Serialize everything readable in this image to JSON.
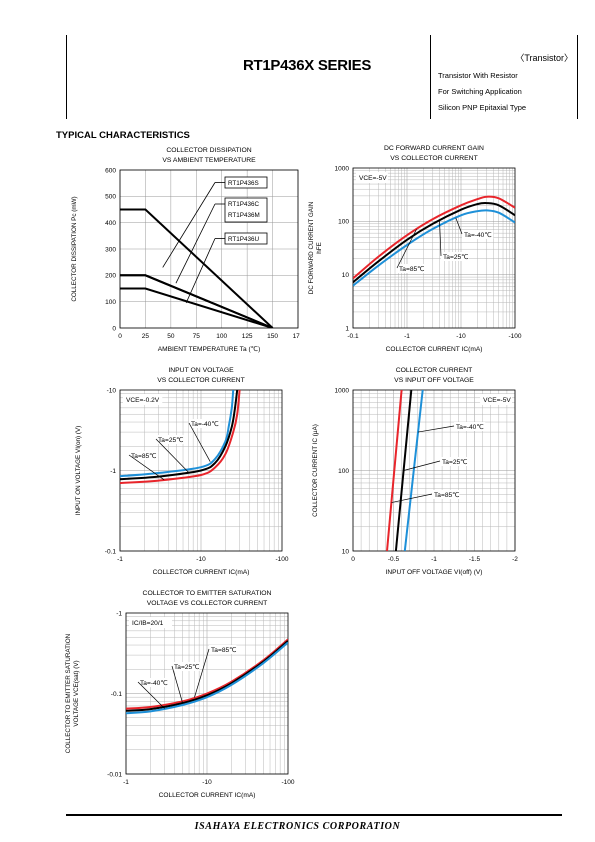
{
  "header": {
    "series_title": "RT1P436X SERIES",
    "category": "〈Transistor〉",
    "desc1": "Transistor With Resistor",
    "desc2": "For Switching Application",
    "desc3": "Silicon PNP Epitaxial Type"
  },
  "section_title": "TYPICAL CHARACTERISTICS",
  "footer": "ISAHAYA ELECTRONICS CORPORATION",
  "colors": {
    "black": "#000000",
    "red": "#e8252b",
    "blue": "#1e90d8",
    "grid": "#b8b8b8"
  },
  "chart_data": [
    {
      "id": "pc-ta",
      "type": "line",
      "title": "COLLECTOR DISSIPATION",
      "subtitle": "VS AMBIENT TEMPERATURE",
      "xlabel": "AMBIENT TEMPERATURE Ta (℃)",
      "ylabel": "COLLECTOR DISSIPATION Pc (mW)",
      "xlim": [
        0,
        175
      ],
      "ylim": [
        0,
        600
      ],
      "xticks": [
        "0",
        "25",
        "50",
        "75",
        "100",
        "125",
        "150",
        "175"
      ],
      "yticks": [
        "0",
        "100",
        "200",
        "300",
        "400",
        "500",
        "600"
      ],
      "series": [
        {
          "name": "RT1P436S",
          "x": [
            0,
            25,
            150
          ],
          "y": [
            450,
            450,
            0
          ]
        },
        {
          "name": "RT1P436C",
          "x": [
            0,
            25,
            150
          ],
          "y": [
            200,
            200,
            0
          ]
        },
        {
          "name": "RT1P436M",
          "x": [
            0,
            25,
            150
          ],
          "y": [
            200,
            200,
            0
          ]
        },
        {
          "name": "RT1P436U",
          "x": [
            0,
            25,
            150
          ],
          "y": [
            150,
            150,
            0
          ]
        }
      ],
      "labels": [
        "RT1P436S",
        "RT1P436C",
        "RT1P436M",
        "RT1P436U"
      ]
    },
    {
      "id": "hfe-ic",
      "type": "line",
      "title": "DC FORWARD CURRENT GAIN",
      "subtitle": "VS COLLECTOR CURRENT",
      "xlabel": "COLLECTOR CURRENT IC(mA)",
      "ylabel": "DC FORWARD CURRENT GAIN hFE",
      "xscale": "log",
      "yscale": "log",
      "xlim": [
        -0.1,
        -100
      ],
      "ylim": [
        1,
        1000
      ],
      "xticks": [
        "-0.1",
        "-1",
        "-10",
        "-100"
      ],
      "yticks": [
        "1",
        "10",
        "100",
        "1000"
      ],
      "condition": "VCE=-5V",
      "series": [
        {
          "name": "Ta=85℃",
          "x": [
            -0.1,
            -0.3,
            -1,
            -3,
            -10,
            -20,
            -30,
            -50,
            -100
          ],
          "y": [
            8.5,
            22,
            55,
            110,
            200,
            260,
            290,
            270,
            180
          ]
        },
        {
          "name": "Ta=25℃",
          "x": [
            -0.1,
            -0.3,
            -1,
            -3,
            -10,
            -20,
            -30,
            -50,
            -100
          ],
          "y": [
            7.2,
            18,
            45,
            90,
            165,
            210,
            220,
            200,
            130
          ]
        },
        {
          "name": "Ta=-40℃",
          "x": [
            -0.1,
            -0.3,
            -1,
            -3,
            -10,
            -20,
            -30,
            -50,
            -100
          ],
          "y": [
            6.2,
            15,
            36,
            72,
            130,
            155,
            160,
            145,
            95
          ]
        }
      ]
    },
    {
      "id": "vin-ic",
      "type": "line",
      "title": "INPUT ON VOLTAGE",
      "subtitle": "VS COLLECTOR CURRENT",
      "xlabel": "COLLECTOR CURRENT IC(mA)",
      "ylabel": "INPUT ON VOLTAGE VI(on) (V)",
      "xscale": "log",
      "yscale": "log",
      "xlim": [
        -1,
        -100
      ],
      "ylim": [
        -0.1,
        -10
      ],
      "xticks": [
        "-1",
        "-10",
        "-100"
      ],
      "yticks": [
        "-0.1",
        "-1",
        "-10"
      ],
      "condition": "VCE=-0.2V",
      "series": [
        {
          "name": "Ta=-40℃",
          "x": [
            -1,
            -3,
            -10,
            -15,
            -20,
            -22,
            -24,
            -25
          ],
          "y": [
            -0.85,
            -0.93,
            -1.1,
            -1.4,
            -2.3,
            -3.5,
            -6,
            -10
          ]
        },
        {
          "name": "Ta=25℃",
          "x": [
            -1,
            -3,
            -10,
            -15,
            -20,
            -24,
            -26,
            -28
          ],
          "y": [
            -0.78,
            -0.84,
            -1.0,
            -1.25,
            -2.0,
            -3.5,
            -5.5,
            -10
          ]
        },
        {
          "name": "Ta=85℃",
          "x": [
            -1,
            -3,
            -10,
            -15,
            -20,
            -25,
            -28,
            -30
          ],
          "y": [
            -0.7,
            -0.75,
            -0.88,
            -1.1,
            -1.6,
            -3,
            -5,
            -10
          ]
        }
      ]
    },
    {
      "id": "ic-vioff",
      "type": "line",
      "title": "COLLECTOR CURRENT",
      "subtitle": "VS INPUT OFF VOLTAGE",
      "xlabel": "INPUT OFF VOLTAGE VI(off) (V)",
      "ylabel": "COLLECTOR CURRENT IC (μA)",
      "yscale": "log",
      "xlim": [
        0,
        -2
      ],
      "ylim": [
        10,
        1000
      ],
      "xticks": [
        "0",
        "-0.5",
        "-1",
        "-1.5",
        "-2"
      ],
      "yticks": [
        "10",
        "100",
        "1000"
      ],
      "condition": "VCE=-5V",
      "series": [
        {
          "name": "Ta=85℃",
          "x": [
            -0.42,
            -0.6
          ],
          "y": [
            10,
            1000
          ]
        },
        {
          "name": "Ta=25℃",
          "x": [
            -0.53,
            -0.72
          ],
          "y": [
            10,
            1000
          ]
        },
        {
          "name": "Ta=-40℃",
          "x": [
            -0.64,
            -0.86
          ],
          "y": [
            10,
            1000
          ]
        }
      ]
    },
    {
      "id": "vcesat-ic",
      "type": "line",
      "title": "COLLECTOR TO EMITTER SATURATION",
      "subtitle": "VOLTAGE VS COLLECTOR CURRENT",
      "xlabel": "COLLECTOR CURRENT IC(mA)",
      "ylabel": "COLLECTOR TO EMITTER SATURATION VOLTAGE VCE(sat) (V)",
      "xscale": "log",
      "yscale": "log",
      "xlim": [
        -1,
        -100
      ],
      "ylim": [
        -0.01,
        -1
      ],
      "xticks": [
        "-1",
        "-10",
        "-100"
      ],
      "yticks": [
        "-0.01",
        "-0.1",
        "-1"
      ],
      "condition": "IC/IB=20/1",
      "series": [
        {
          "name": "Ta=85℃",
          "x": [
            -1,
            -2,
            -5,
            -10,
            -20,
            -50,
            -100
          ],
          "y": [
            -0.065,
            -0.068,
            -0.08,
            -0.1,
            -0.14,
            -0.26,
            -0.47
          ]
        },
        {
          "name": "Ta=25℃",
          "x": [
            -1,
            -2,
            -5,
            -10,
            -20,
            -50,
            -100
          ],
          "y": [
            -0.061,
            -0.064,
            -0.076,
            -0.095,
            -0.134,
            -0.25,
            -0.45
          ]
        },
        {
          "name": "Ta=-40℃",
          "x": [
            -1,
            -2,
            -5,
            -10,
            -20,
            -50,
            -100
          ],
          "y": [
            -0.057,
            -0.06,
            -0.072,
            -0.09,
            -0.128,
            -0.24,
            -0.43
          ]
        }
      ]
    }
  ]
}
